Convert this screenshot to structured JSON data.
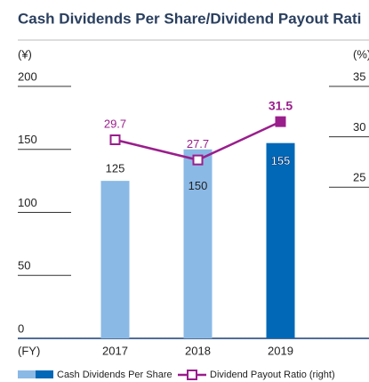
{
  "chart_data": {
    "type": "bar_line",
    "title": "Cash Dividends Per Share/Dividend Payout Rati",
    "y_unit": "(¥)",
    "y2_unit": "(%)",
    "x_unit": "(FY)",
    "categories": [
      "2017",
      "2018",
      "2019"
    ],
    "ylim": [
      0,
      200
    ],
    "yticks": [
      0,
      50,
      100,
      150,
      200
    ],
    "y2lim": [
      10,
      35
    ],
    "y2ticks": [
      25,
      30,
      35
    ],
    "series": [
      {
        "name": "Cash Dividends Per Share",
        "type": "bar",
        "color": "#8ab9e6",
        "colors": [
          "#8ab9e6",
          "#8ab9e6",
          "#0068b7"
        ],
        "values": [
          125,
          150,
          155
        ]
      },
      {
        "name": "Dividend Payout Ratio (right)",
        "type": "line",
        "axis": "y2",
        "color": "#9a1e8c",
        "values": [
          29.7,
          27.7,
          31.5
        ]
      }
    ]
  }
}
